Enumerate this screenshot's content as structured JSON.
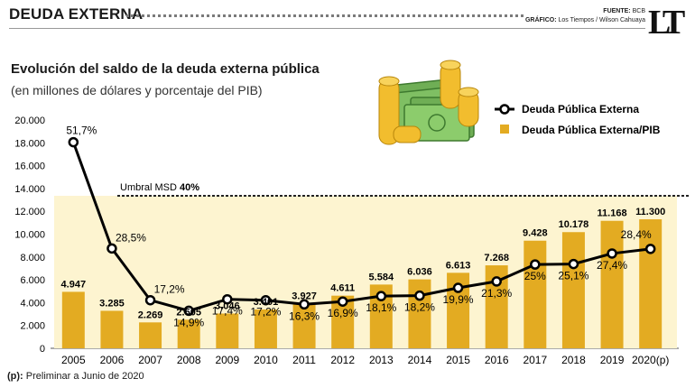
{
  "header": {
    "title": "DEUDA EXTERNA",
    "source_label": "FUENTE:",
    "source_value": "BCB",
    "graphic_label": "GRÁFICO:",
    "graphic_value": "Los Tiempos / Wilson Cahuaya",
    "logo_text": "LT"
  },
  "footnote": {
    "marker": "(p):",
    "text": "Preliminar a Junio de 2020"
  },
  "colors": {
    "bar": "#e3ab22",
    "band": "#fdf4d0",
    "line": "#000000",
    "marker_fill": "#ffffff",
    "threshold": "#222222"
  },
  "chart_data": {
    "type": "bar",
    "title": "Evolución del saldo de la deuda externa pública",
    "subtitle": "(en millones de dólares y porcentaje del PIB)",
    "categories": [
      "2005",
      "2006",
      "2007",
      "2008",
      "2009",
      "2010",
      "2011",
      "2012",
      "2013",
      "2014",
      "2015",
      "2016",
      "2017",
      "2018",
      "2019",
      "2020(p)"
    ],
    "ylim": [
      0,
      20000
    ],
    "yticks": [
      "0",
      "2.000",
      "4.000",
      "6.000",
      "8.000",
      "10.000",
      "12.000",
      "14.000",
      "16.000",
      "18.000",
      "20.000"
    ],
    "grid": false,
    "legend_position": "top-right",
    "series": [
      {
        "name": "Deuda Pública Externa/PIB",
        "kind": "bar",
        "values": [
          4947,
          3285,
          2269,
          2505,
          3046,
          3401,
          3927,
          4611,
          5584,
          6036,
          6613,
          7268,
          9428,
          10178,
          11168,
          11300
        ],
        "labels": [
          "4.947",
          "3.285",
          "2.269",
          "2.505",
          "3.046",
          "3.401",
          "3.927",
          "4.611",
          "5.584",
          "6.036",
          "6.613",
          "7.268",
          "9.428",
          "10.178",
          "11.168",
          "11.300"
        ]
      },
      {
        "name": "Deuda Pública Externa",
        "kind": "line",
        "values": [
          51.7,
          28.5,
          17.2,
          14.9,
          17.4,
          17.2,
          16.3,
          16.9,
          18.1,
          18.2,
          19.9,
          21.3,
          25,
          25.1,
          27.4,
          28.4
        ],
        "labels": [
          "51,7%",
          "28,5%",
          "17,2%",
          "14,9%",
          "17,4%",
          "17,2%",
          "16,3%",
          "16,9%",
          "18,1%",
          "18,2%",
          "19,9%",
          "21,3%",
          "25%",
          "25,1%",
          "27,4%",
          "28,4%"
        ]
      }
    ],
    "threshold": {
      "label": "Umbral MSD",
      "value_label": "40%",
      "value": 40
    }
  }
}
